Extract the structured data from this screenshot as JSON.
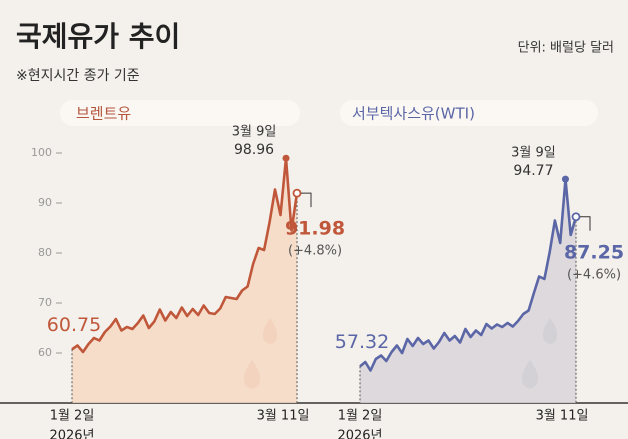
{
  "title": "국제유가 추이",
  "subtitle": "※현지시간 종가 기준",
  "unit": "단위: 배럴당 달러",
  "chart_data": [
    {
      "type": "line",
      "title": "브렌트유",
      "categories": [
        "1월 2일",
        null,
        null,
        null,
        null,
        null,
        null,
        null,
        null,
        null,
        null,
        null,
        null,
        null,
        null,
        null,
        null,
        null,
        null,
        null,
        null,
        null,
        null,
        null,
        null,
        null,
        null,
        null,
        null,
        null,
        null,
        null,
        null,
        null,
        null,
        null,
        null,
        null,
        null,
        "3월 9일",
        null,
        "3월 11일"
      ],
      "x_sublabel": "2026년",
      "series": [
        {
          "name": "브렌트유",
          "color": "#c0573a",
          "fill": "#f5d9c4",
          "values": [
            60.75,
            61.5,
            60.2,
            61.8,
            63.0,
            62.5,
            64.2,
            65.3,
            66.8,
            64.5,
            65.2,
            64.8,
            66.0,
            67.5,
            65.0,
            66.3,
            68.7,
            66.5,
            68.2,
            67.0,
            69.1,
            67.4,
            68.8,
            67.6,
            69.5,
            68.0,
            67.8,
            68.9,
            71.2,
            71.0,
            70.8,
            72.5,
            73.3,
            77.8,
            81.0,
            80.6,
            86.2,
            92.7,
            87.6,
            98.96,
            84.5,
            91.98
          ]
        }
      ],
      "change": "(+4.8%)",
      "ylim": [
        50,
        102
      ],
      "yticks": [
        60,
        70,
        80,
        90,
        100
      ]
    },
    {
      "type": "line",
      "title": "서부텍사스유(WTI)",
      "categories": [
        "1월 2일",
        null,
        null,
        null,
        null,
        null,
        null,
        null,
        null,
        null,
        null,
        null,
        null,
        null,
        null,
        null,
        null,
        null,
        null,
        null,
        null,
        null,
        null,
        null,
        null,
        null,
        null,
        null,
        null,
        null,
        null,
        null,
        null,
        null,
        null,
        null,
        null,
        null,
        null,
        "3월 9일",
        null,
        "3월 11일"
      ],
      "x_sublabel": "2026년",
      "series": [
        {
          "name": "서부텍사스유(WTI)",
          "color": "#5b66a6",
          "fill": "#d8d5da",
          "values": [
            57.32,
            58.2,
            56.5,
            58.8,
            59.5,
            58.4,
            60.2,
            61.5,
            60.0,
            62.8,
            61.4,
            63.0,
            61.8,
            62.5,
            60.9,
            62.2,
            64.0,
            62.5,
            63.4,
            62.1,
            64.8,
            63.2,
            64.5,
            63.6,
            65.8,
            64.9,
            65.7,
            65.2,
            66.0,
            65.3,
            66.4,
            67.8,
            68.5,
            72.0,
            75.3,
            74.8,
            80.2,
            86.5,
            82.0,
            94.77,
            83.6,
            87.25
          ]
        }
      ],
      "change": "(+4.6%)",
      "ylim": [
        50,
        102
      ]
    }
  ]
}
